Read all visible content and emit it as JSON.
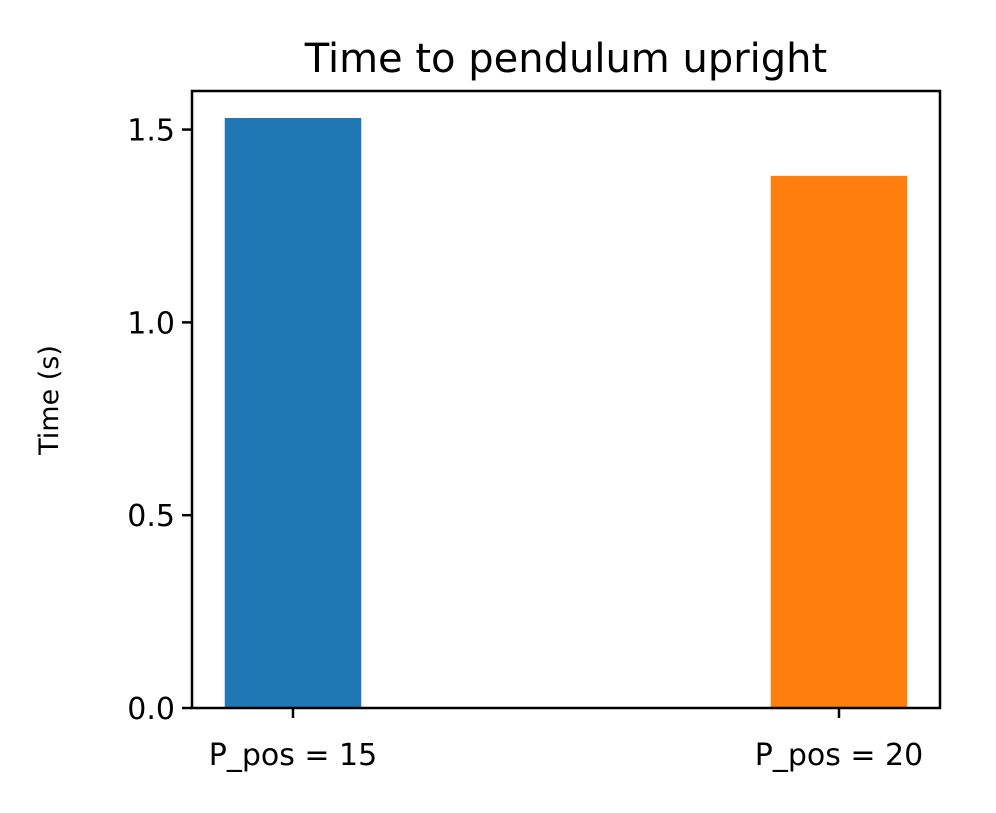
{
  "chart_data": {
    "type": "bar",
    "title": "Time to pendulum upright",
    "xlabel": "",
    "ylabel": "Time (s)",
    "categories": [
      "P_pos = 15",
      "P_pos = 20"
    ],
    "values": [
      1.53,
      1.38
    ],
    "colors": [
      "#1f77b4",
      "#ff7f0e"
    ],
    "ylim": [
      0,
      1.6
    ],
    "yticks": [
      0.0,
      0.5,
      1.0,
      1.5
    ],
    "ytick_labels": [
      "0.0",
      "0.5",
      "1.0",
      "1.5"
    ],
    "grid": false,
    "legend": "none"
  }
}
